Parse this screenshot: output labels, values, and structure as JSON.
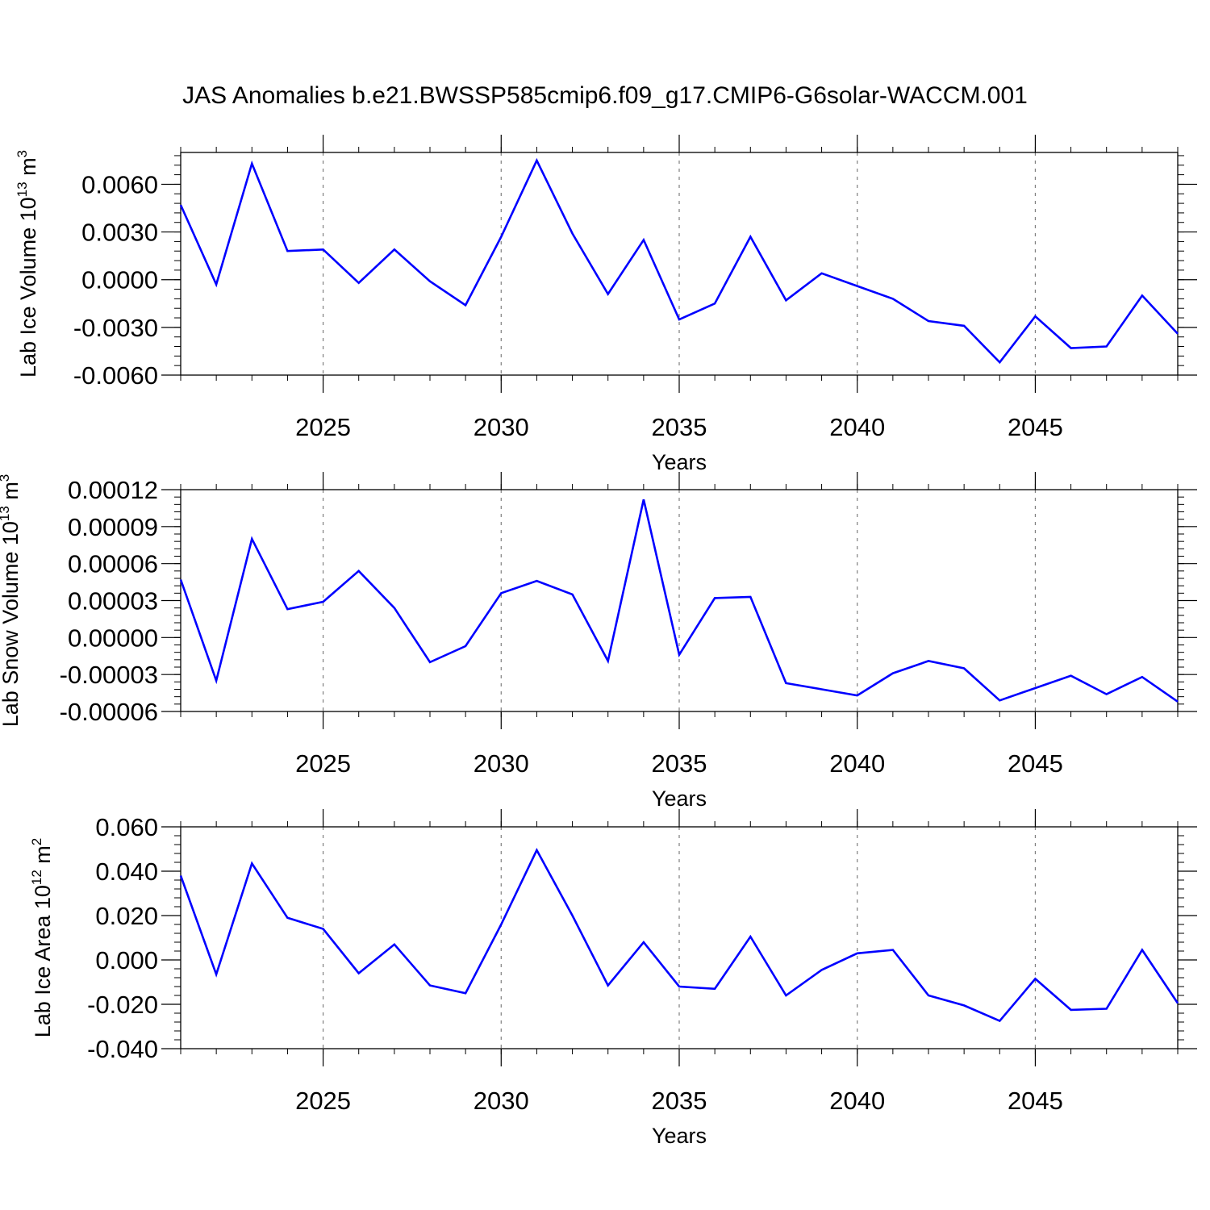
{
  "figure": {
    "title": "JAS Anomalies b.e21.BWSSP585cmip6.f09_g17.CMIP6-G6solar-WACCM.001",
    "line_color": "#0000ff"
  },
  "chart_data": [
    {
      "type": "line",
      "xlabel": "Years",
      "ylabel": "Lab Ice Volume 10",
      "ylabel_exp": "13",
      "ylabel_unit": " m",
      "ylabel_unit_exp": "3",
      "xlim": [
        2021,
        2049
      ],
      "ylim": [
        -0.006,
        0.008
      ],
      "x_ticks": [
        2025,
        2030,
        2035,
        2040,
        2045
      ],
      "y_ticks": [
        -0.006,
        -0.003,
        0.0,
        0.003,
        0.006
      ],
      "y_tick_labels": [
        "-0.0060",
        "-0.0030",
        "0.0000",
        "0.0030",
        "0.0060"
      ],
      "grid": "vertical dashed at major x ticks",
      "series": [
        {
          "x": [
            2021,
            2022,
            2023,
            2024,
            2025,
            2026,
            2027,
            2028,
            2029,
            2030,
            2031,
            2032,
            2033,
            2034,
            2035,
            2036,
            2037,
            2038,
            2039,
            2040,
            2041,
            2042,
            2043,
            2044,
            2045,
            2046,
            2047,
            2048,
            2049
          ],
          "values": [
            0.0047,
            -0.0003,
            0.0073,
            0.0018,
            0.0019,
            -0.0002,
            0.0019,
            -0.0001,
            -0.0016,
            0.0027,
            0.0075,
            0.0029,
            -0.0009,
            0.0025,
            -0.0025,
            -0.0015,
            0.0027,
            -0.0013,
            0.0004,
            -0.0004,
            -0.0012,
            -0.0026,
            -0.0029,
            -0.0052,
            -0.0023,
            -0.0043,
            -0.0042,
            -0.001,
            -0.0034
          ]
        }
      ]
    },
    {
      "type": "line",
      "xlabel": "Years",
      "ylabel": "Lab Snow Volume 10",
      "ylabel_exp": "13",
      "ylabel_unit": " m",
      "ylabel_unit_exp": "3",
      "xlim": [
        2021,
        2049
      ],
      "ylim": [
        -6e-05,
        0.00012
      ],
      "x_ticks": [
        2025,
        2030,
        2035,
        2040,
        2045
      ],
      "y_ticks": [
        -6e-05,
        -3e-05,
        0.0,
        3e-05,
        6e-05,
        9e-05,
        0.00012
      ],
      "y_tick_labels": [
        "-0.00006",
        "-0.00003",
        "0.00000",
        "0.00003",
        "0.00006",
        "0.00009",
        "0.00012"
      ],
      "grid": "vertical dashed at major x ticks",
      "series": [
        {
          "x": [
            2021,
            2022,
            2023,
            2024,
            2025,
            2026,
            2027,
            2028,
            2029,
            2030,
            2031,
            2032,
            2033,
            2034,
            2035,
            2036,
            2037,
            2038,
            2039,
            2040,
            2041,
            2042,
            2043,
            2044,
            2045,
            2046,
            2047,
            2048,
            2049
          ],
          "values": [
            4.7e-05,
            -3.5e-05,
            8e-05,
            2.3e-05,
            2.9e-05,
            5.4e-05,
            2.4e-05,
            -2e-05,
            -7e-06,
            3.6e-05,
            4.6e-05,
            3.5e-05,
            -1.9e-05,
            0.000112,
            -1.4e-05,
            3.2e-05,
            3.3e-05,
            -3.7e-05,
            -4.2e-05,
            -4.7e-05,
            -2.9e-05,
            -1.9e-05,
            -2.5e-05,
            -5.1e-05,
            -4.1e-05,
            -3.1e-05,
            -4.6e-05,
            -3.2e-05,
            -5.2e-05
          ]
        }
      ]
    },
    {
      "type": "line",
      "xlabel": "Years",
      "ylabel": "Lab Ice Area 10",
      "ylabel_exp": "12",
      "ylabel_unit": " m",
      "ylabel_unit_exp": "2",
      "xlim": [
        2021,
        2049
      ],
      "ylim": [
        -0.04,
        0.06
      ],
      "x_ticks": [
        2025,
        2030,
        2035,
        2040,
        2045
      ],
      "y_ticks": [
        -0.04,
        -0.02,
        0.0,
        0.02,
        0.04,
        0.06
      ],
      "y_tick_labels": [
        "-0.040",
        "-0.020",
        "0.000",
        "0.020",
        "0.040",
        "0.060"
      ],
      "grid": "vertical dashed at major x ticks",
      "series": [
        {
          "x": [
            2021,
            2022,
            2023,
            2024,
            2025,
            2026,
            2027,
            2028,
            2029,
            2030,
            2031,
            2032,
            2033,
            2034,
            2035,
            2036,
            2037,
            2038,
            2039,
            2040,
            2041,
            2042,
            2043,
            2044,
            2045,
            2046,
            2047,
            2048,
            2049
          ],
          "values": [
            0.038,
            -0.0065,
            0.0435,
            0.019,
            0.014,
            -0.006,
            0.007,
            -0.0115,
            -0.015,
            0.016,
            0.0495,
            0.02,
            -0.0115,
            0.008,
            -0.012,
            -0.013,
            0.0105,
            -0.016,
            -0.0045,
            0.003,
            0.0045,
            -0.016,
            -0.0205,
            -0.0275,
            -0.0085,
            -0.0225,
            -0.022,
            0.0045,
            -0.0195
          ]
        }
      ]
    }
  ]
}
